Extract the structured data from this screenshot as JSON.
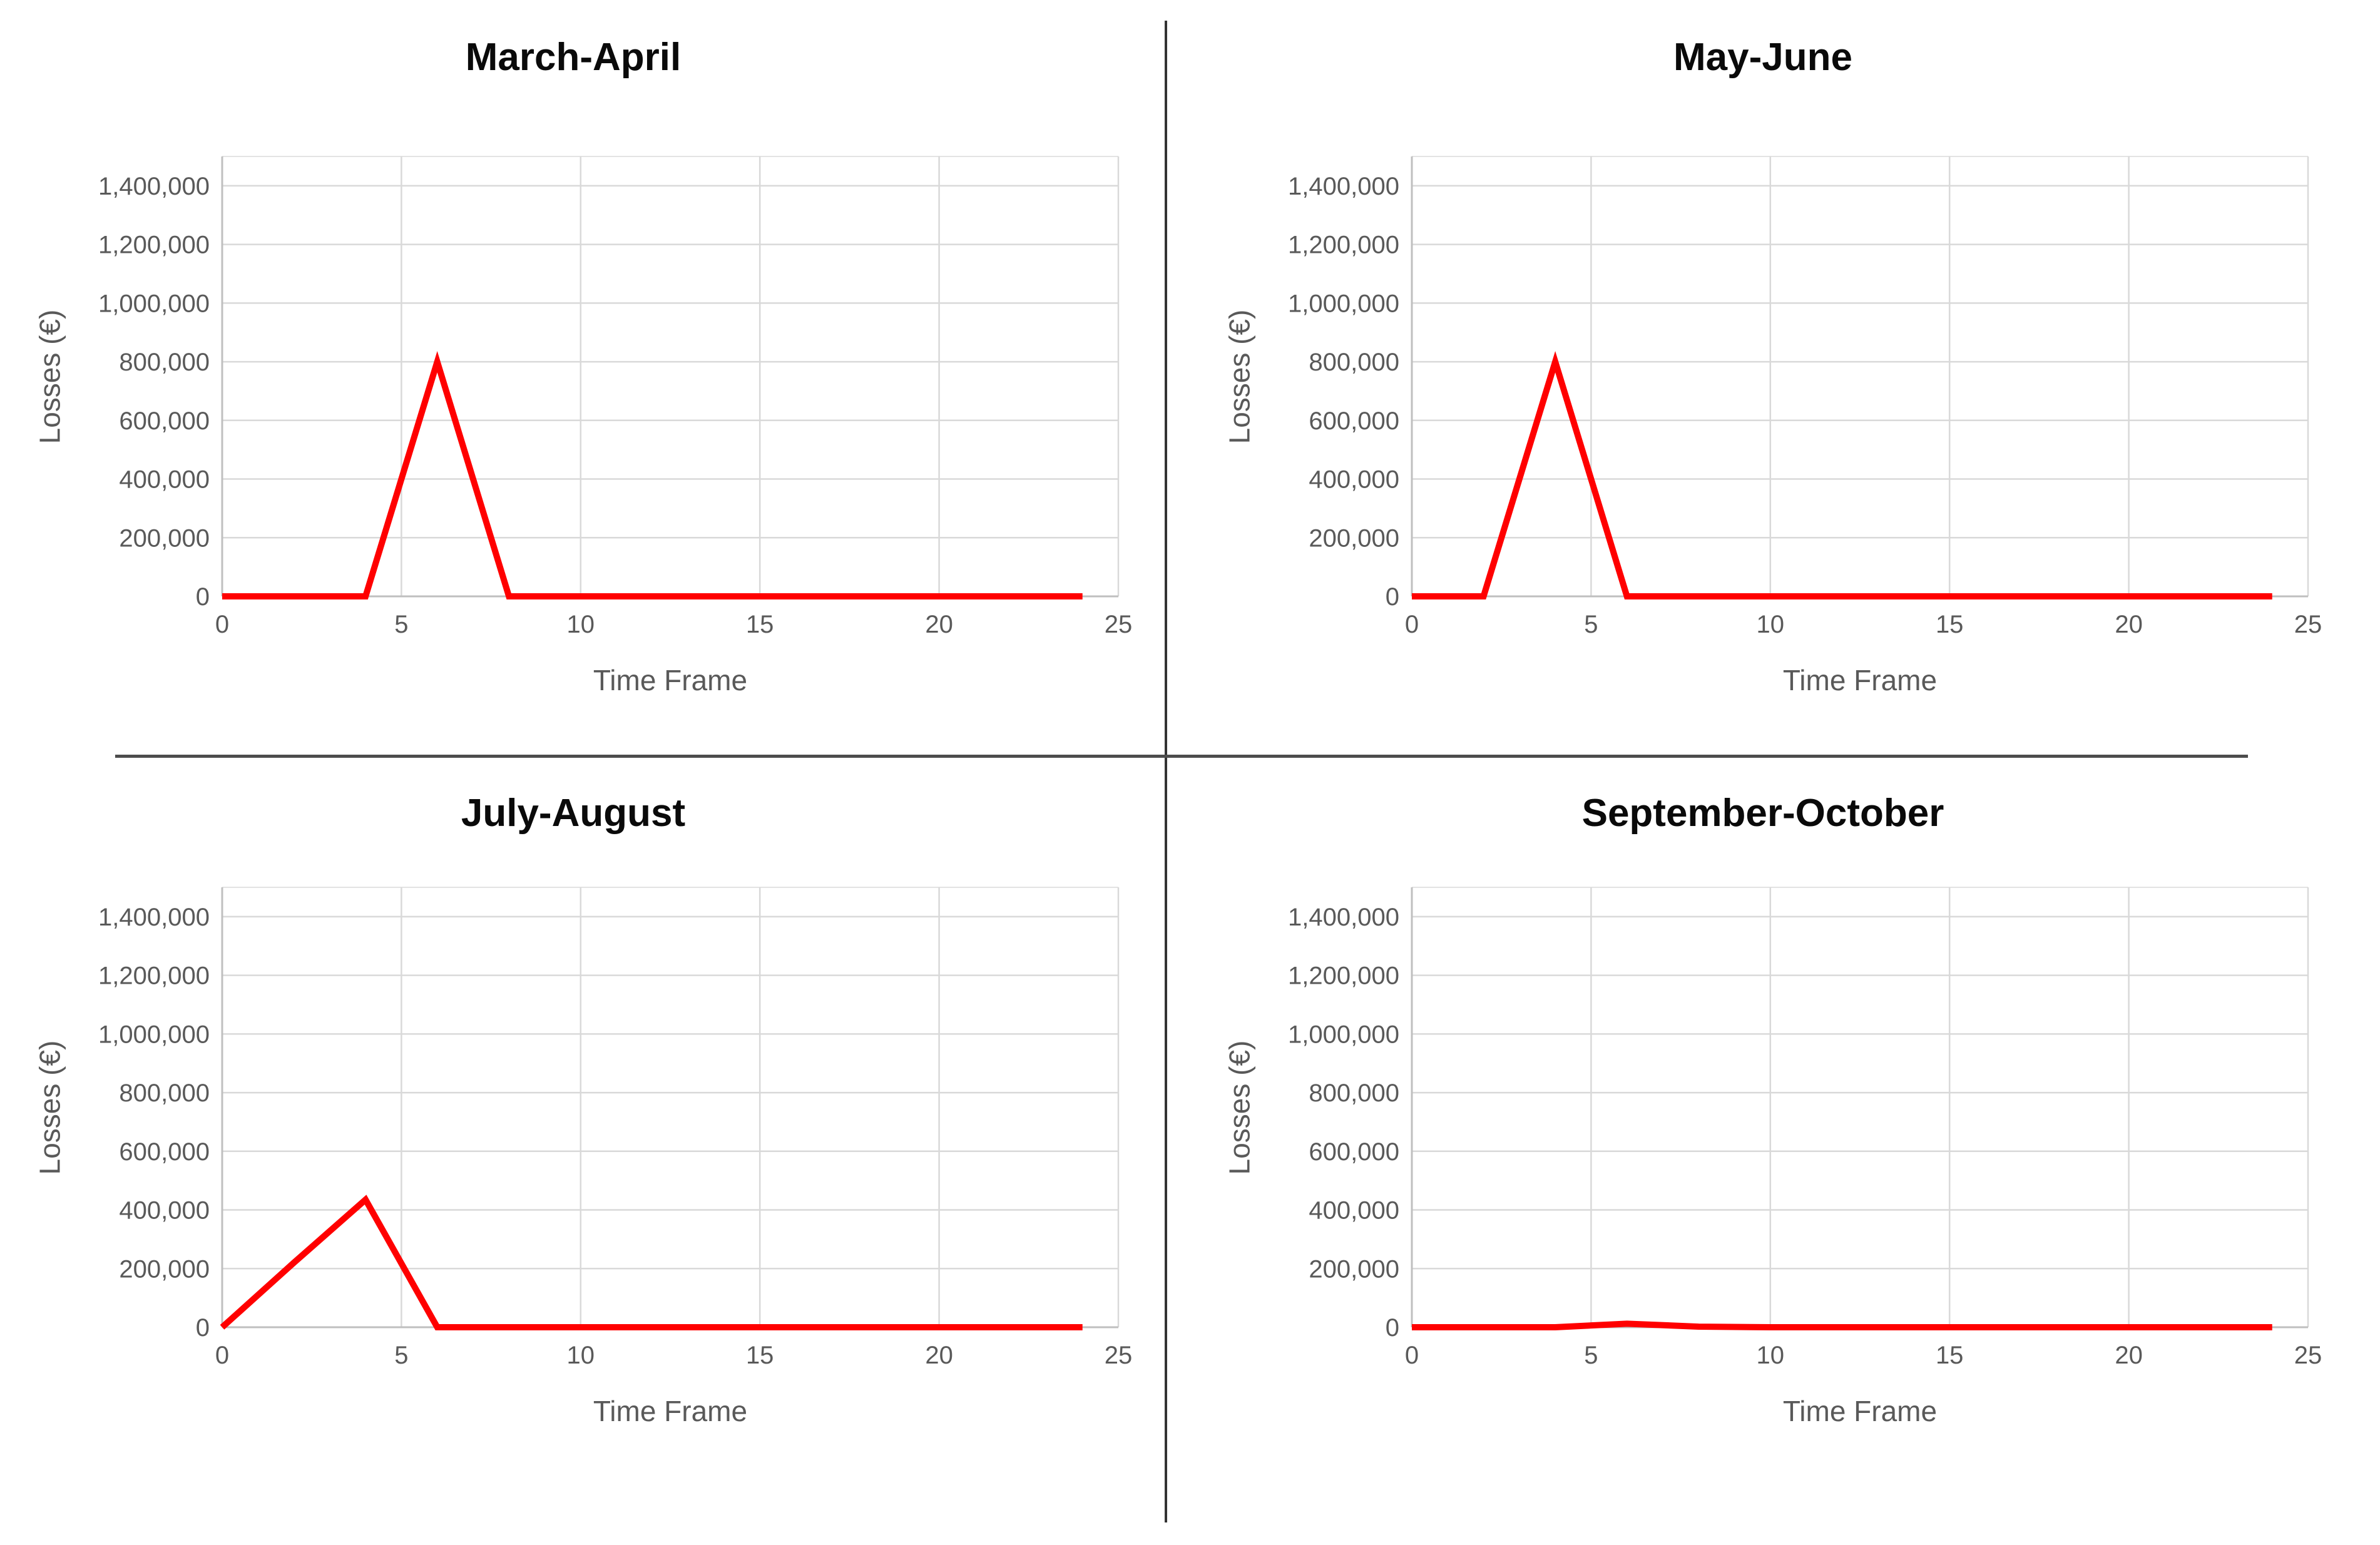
{
  "page": {
    "background": "#FFFFFF"
  },
  "colors": {
    "series_line": "#FF0000",
    "gridline": "#D9D9D9",
    "plot_top_border": "#E3E3E3",
    "axis_line": "#BFBFBF",
    "tick_text": "#595959",
    "axis_title_text": "#595959",
    "chart_title_text": "#0A0A0A",
    "divider": "#333333"
  },
  "chart_data": [
    {
      "type": "line",
      "title": "March-April",
      "xlabel": "Time Frame",
      "ylabel": "Losses (€)",
      "x": [
        0,
        2,
        4,
        6,
        8,
        10,
        12,
        14,
        16,
        18,
        20,
        22,
        24
      ],
      "values": [
        0,
        0,
        0,
        800000,
        0,
        0,
        0,
        0,
        0,
        0,
        0,
        0,
        0
      ],
      "xlim": [
        0,
        25
      ],
      "ylim": [
        0,
        1500000
      ],
      "xticks": [
        0,
        5,
        10,
        15,
        20,
        25
      ],
      "yticks": [
        0,
        200000,
        400000,
        600000,
        800000,
        1000000,
        1200000,
        1400000
      ],
      "grid": true,
      "legend": "none",
      "line_color": "#FF0000"
    },
    {
      "type": "line",
      "title": "May-June",
      "xlabel": "Time Frame",
      "ylabel": "Losses (€)",
      "x": [
        0,
        2,
        4,
        6,
        8,
        10,
        12,
        14,
        16,
        18,
        20,
        22,
        24
      ],
      "values": [
        0,
        0,
        800000,
        0,
        0,
        0,
        0,
        0,
        0,
        0,
        0,
        0,
        0
      ],
      "xlim": [
        0,
        25
      ],
      "ylim": [
        0,
        1500000
      ],
      "xticks": [
        0,
        5,
        10,
        15,
        20,
        25
      ],
      "yticks": [
        0,
        200000,
        400000,
        600000,
        800000,
        1000000,
        1200000,
        1400000
      ],
      "grid": true,
      "legend": "none",
      "line_color": "#FF0000"
    },
    {
      "type": "line",
      "title": "July-August",
      "xlabel": "Time Frame",
      "ylabel": "Losses (€)",
      "x": [
        0,
        2,
        4,
        6,
        8,
        10,
        12,
        14,
        16,
        18,
        20,
        22,
        24
      ],
      "values": [
        0,
        220000,
        435000,
        0,
        0,
        0,
        0,
        0,
        0,
        0,
        0,
        0,
        0
      ],
      "xlim": [
        0,
        25
      ],
      "ylim": [
        0,
        1500000
      ],
      "xticks": [
        0,
        5,
        10,
        15,
        20,
        25
      ],
      "yticks": [
        0,
        200000,
        400000,
        600000,
        800000,
        1000000,
        1200000,
        1400000
      ],
      "grid": true,
      "legend": "none",
      "line_color": "#FF0000"
    },
    {
      "type": "line",
      "title": "September-October",
      "xlabel": "Time Frame",
      "ylabel": "Losses (€)",
      "x": [
        0,
        2,
        4,
        6,
        8,
        10,
        12,
        14,
        16,
        18,
        20,
        22,
        24
      ],
      "values": [
        0,
        0,
        0,
        12000,
        2000,
        0,
        0,
        0,
        0,
        0,
        0,
        0,
        0
      ],
      "xlim": [
        0,
        25
      ],
      "ylim": [
        0,
        1500000
      ],
      "xticks": [
        0,
        5,
        10,
        15,
        20,
        25
      ],
      "yticks": [
        0,
        200000,
        400000,
        600000,
        800000,
        1000000,
        1200000,
        1400000
      ],
      "grid": true,
      "legend": "none",
      "line_color": "#FF0000"
    }
  ]
}
